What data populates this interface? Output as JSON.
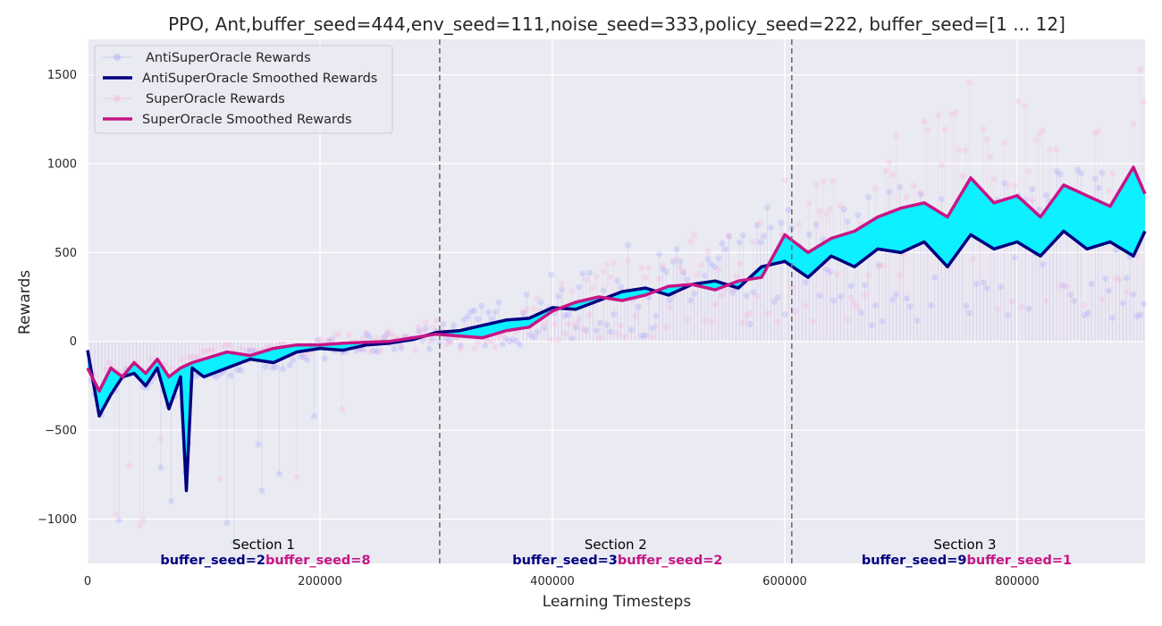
{
  "chart_data": {
    "type": "line",
    "title": "PPO, Ant,buffer_seed=444,env_seed=111,noise_seed=333,policy_seed=222, buffer_seed=[1 ... 12]",
    "xlabel": "Learning Timesteps",
    "ylabel": "Rewards",
    "xlim": [
      0,
      910000
    ],
    "ylim": [
      -1250,
      1700
    ],
    "xticks": [
      0,
      200000,
      400000,
      600000,
      800000
    ],
    "xtick_labels": [
      "0",
      "200000",
      "400000",
      "600000",
      "800000"
    ],
    "yticks": [
      -1000,
      -500,
      0,
      500,
      1000,
      1500
    ],
    "ytick_labels": [
      "−1000",
      "−500",
      "0",
      "500",
      "1000",
      "1500"
    ],
    "grid": true,
    "legend_position": "top-left",
    "section_boundaries": [
      303000,
      606000
    ],
    "sections": [
      {
        "label": "Section 1",
        "anti_seed": "buffer_seed=2",
        "super_seed": "buffer_seed=8"
      },
      {
        "label": "Section 2",
        "anti_seed": "buffer_seed=3",
        "super_seed": "buffer_seed=2"
      },
      {
        "label": "Section 3",
        "anti_seed": "buffer_seed=9",
        "super_seed": "buffer_seed=1"
      }
    ],
    "colors": {
      "anti": "#000080",
      "super": "#c71585",
      "anti_raw": "#7b7bff",
      "super_raw": "#ff9fcf",
      "gap_fill": "#00f0ff",
      "background": "#eaeaf2",
      "boundary": "#6e6e6e"
    },
    "series": [
      {
        "name": "AntiSuperOracle Rewards",
        "kind": "raw"
      },
      {
        "name": "AntiSuperOracle Smoothed Rewards",
        "kind": "smoothed",
        "x": [
          0,
          10000,
          20000,
          30000,
          40000,
          50000,
          60000,
          70000,
          80000,
          85000,
          90000,
          100000,
          120000,
          140000,
          160000,
          180000,
          200000,
          220000,
          240000,
          260000,
          280000,
          300000,
          320000,
          340000,
          360000,
          380000,
          400000,
          420000,
          440000,
          460000,
          480000,
          500000,
          520000,
          540000,
          560000,
          580000,
          600000,
          620000,
          640000,
          660000,
          680000,
          700000,
          720000,
          740000,
          760000,
          780000,
          800000,
          820000,
          840000,
          860000,
          880000,
          900000,
          910000
        ],
        "y": [
          -50,
          -420,
          -300,
          -200,
          -180,
          -250,
          -150,
          -380,
          -200,
          -840,
          -150,
          -200,
          -150,
          -100,
          -120,
          -60,
          -40,
          -50,
          -20,
          -10,
          10,
          50,
          60,
          90,
          120,
          130,
          190,
          180,
          230,
          280,
          300,
          260,
          320,
          340,
          300,
          420,
          450,
          360,
          480,
          420,
          520,
          500,
          560,
          420,
          600,
          520,
          560,
          480,
          620,
          520,
          560,
          480,
          620
        ]
      },
      {
        "name": "SuperOracle Rewards",
        "kind": "raw"
      },
      {
        "name": "SuperOracle Smoothed Rewards",
        "kind": "smoothed",
        "x": [
          0,
          10000,
          20000,
          30000,
          40000,
          50000,
          60000,
          70000,
          80000,
          90000,
          100000,
          120000,
          140000,
          160000,
          180000,
          200000,
          220000,
          240000,
          260000,
          280000,
          300000,
          320000,
          340000,
          360000,
          380000,
          400000,
          420000,
          440000,
          460000,
          480000,
          500000,
          520000,
          540000,
          560000,
          580000,
          600000,
          620000,
          640000,
          660000,
          680000,
          700000,
          720000,
          740000,
          760000,
          780000,
          800000,
          820000,
          840000,
          860000,
          880000,
          900000,
          910000
        ],
        "y": [
          -150,
          -280,
          -150,
          -200,
          -120,
          -180,
          -100,
          -200,
          -150,
          -120,
          -100,
          -60,
          -80,
          -40,
          -20,
          -20,
          -10,
          -5,
          0,
          20,
          40,
          30,
          20,
          60,
          80,
          170,
          220,
          250,
          230,
          260,
          310,
          320,
          290,
          340,
          360,
          600,
          500,
          580,
          620,
          700,
          750,
          780,
          700,
          920,
          780,
          820,
          700,
          880,
          820,
          760,
          980,
          830
        ]
      }
    ]
  }
}
